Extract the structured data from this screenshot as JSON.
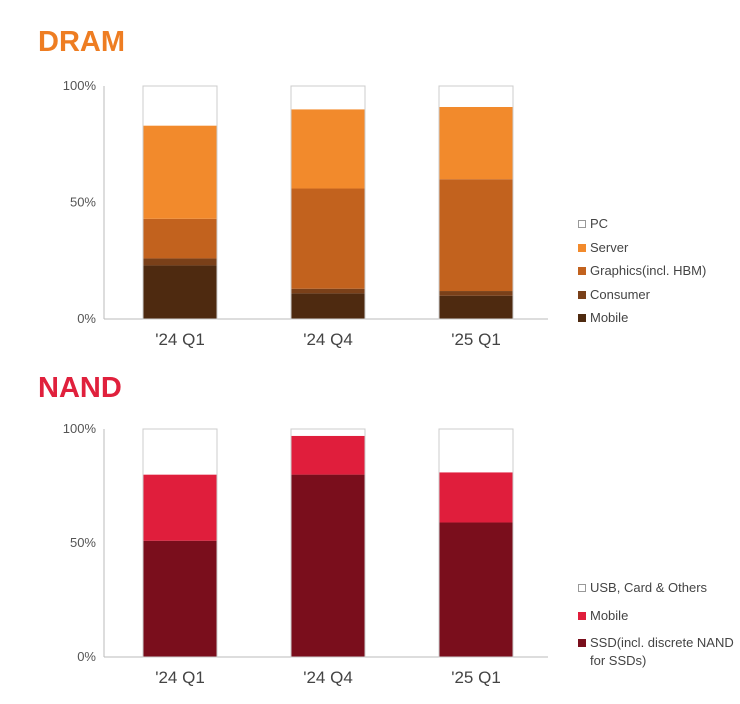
{
  "chart_data": [
    {
      "type": "bar",
      "stacked": true,
      "title": "DRAM",
      "title_color": "#EE7D22",
      "categories": [
        "'24 Q1",
        "'24 Q4",
        "'25 Q1"
      ],
      "ylim": [
        0,
        100
      ],
      "yticks": [
        0,
        50,
        100
      ],
      "ytick_labels": [
        "0%",
        "50%",
        "100%"
      ],
      "series": [
        {
          "name": "Mobile",
          "color": "#4E2A10",
          "values": [
            23,
            11,
            10
          ]
        },
        {
          "name": "Consumer",
          "color": "#7A4019",
          "values": [
            3,
            2,
            2
          ]
        },
        {
          "name": "Graphics(incl. HBM)",
          "color": "#C2621E",
          "values": [
            17,
            43,
            48
          ]
        },
        {
          "name": "Server",
          "color": "#F28A2C",
          "values": [
            40,
            34,
            31
          ]
        },
        {
          "name": "PC",
          "color": "#FFFFFF",
          "values": [
            17,
            10,
            9
          ]
        }
      ],
      "legend_order": [
        "PC",
        "Server",
        "Graphics(incl. HBM)",
        "Consumer",
        "Mobile"
      ],
      "legend_position": "right"
    },
    {
      "type": "bar",
      "stacked": true,
      "title": "NAND",
      "title_color": "#E0203C",
      "categories": [
        "'24 Q1",
        "'24 Q4",
        "'25 Q1"
      ],
      "ylim": [
        0,
        100
      ],
      "yticks": [
        0,
        50,
        100
      ],
      "ytick_labels": [
        "0%",
        "50%",
        "100%"
      ],
      "series": [
        {
          "name": "SSD(incl. discrete NAND for SSDs)",
          "color": "#7A0E1C",
          "values": [
            51,
            80,
            59
          ]
        },
        {
          "name": "Mobile",
          "color": "#E01E3C",
          "values": [
            29,
            17,
            22
          ]
        },
        {
          "name": "USB, Card & Others",
          "color": "#FFFFFF",
          "values": [
            20,
            3,
            19
          ]
        }
      ],
      "legend_order": [
        "USB, Card & Others",
        "Mobile",
        "SSD(incl. discrete NAND for SSDs)"
      ],
      "legend_position": "right"
    }
  ]
}
